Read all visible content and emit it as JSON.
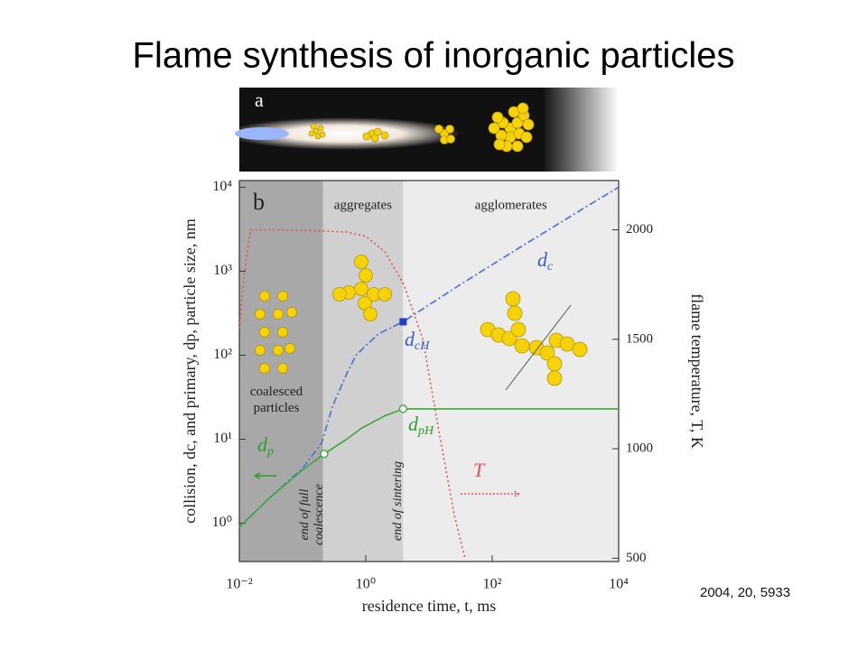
{
  "title": "Flame synthesis of inorganic particles",
  "citation": "2004, 20, 5933",
  "chart_data": {
    "type": "line",
    "panel_labels": [
      "a",
      "b"
    ],
    "xlabel": "residence time, t, ms",
    "ylabel": "collision, dc, and primary, dp, particle size, nm",
    "y2label": "flame temperature, T, K",
    "xscale": "log",
    "yscale": "log",
    "xlim": [
      0.01,
      10000
    ],
    "xticks": [
      {
        "value": 0.01,
        "label": "10⁻²"
      },
      {
        "value": 1,
        "label": "10⁰"
      },
      {
        "value": 100,
        "label": "10²"
      },
      {
        "value": 10000,
        "label": "10⁴"
      }
    ],
    "ylim": [
      0.35,
      12000
    ],
    "yticks": [
      {
        "value": 1,
        "label": "10⁰"
      },
      {
        "value": 10,
        "label": "10¹"
      },
      {
        "value": 100,
        "label": "10²"
      },
      {
        "value": 1000,
        "label": "10³"
      },
      {
        "value": 10000,
        "label": "10⁴"
      }
    ],
    "y2lim": [
      485,
      2225
    ],
    "y2ticks": [
      500,
      1000,
      1500,
      2000
    ],
    "regions": [
      {
        "label": "coalesced particles",
        "x": [
          0.01,
          0.21
        ],
        "color": "#a8a8a8"
      },
      {
        "label": "aggregates",
        "x": [
          0.21,
          3.9
        ],
        "color": "#d0d0d0"
      },
      {
        "label": "agglomerates",
        "x": [
          3.9,
          10000
        ],
        "color": "#ececec"
      }
    ],
    "series": [
      {
        "name": "T",
        "color": "#e8504f",
        "axis": "y2",
        "dash": "2 3",
        "x": [
          0.01,
          0.012,
          0.015,
          0.05,
          0.2,
          0.5,
          1,
          2,
          4,
          8,
          15,
          25,
          37
        ],
        "values": [
          1550,
          1800,
          2000,
          2000,
          1995,
          1990,
          1970,
          1900,
          1750,
          1500,
          1050,
          700,
          500
        ]
      },
      {
        "name": "dc",
        "color": "#4a6fd6",
        "dash": "8 3 2 3",
        "x": [
          0.01,
          0.03,
          0.1,
          0.2,
          0.3,
          0.5,
          0.7,
          1,
          1.6,
          3.9,
          30,
          300,
          3000,
          10000
        ],
        "values": [
          0.9,
          2,
          4.5,
          9,
          25,
          60,
          100,
          130,
          180,
          250,
          680,
          2000,
          5800,
          10000
        ]
      },
      {
        "name": "dp",
        "color": "#3aa83a",
        "dash": "none",
        "x": [
          0.01,
          0.03,
          0.1,
          0.22,
          0.5,
          0.85,
          2,
          3.9,
          10000
        ],
        "values": [
          0.9,
          2,
          4.3,
          6.7,
          10,
          13.5,
          19,
          23,
          23
        ]
      }
    ],
    "markers": [
      {
        "x": 0.22,
        "y": 6.7,
        "shape": "circle",
        "color": "#3aa83a"
      },
      {
        "x": 3.9,
        "y": 23,
        "shape": "circle",
        "color": "#3aa83a"
      },
      {
        "x": 3.9,
        "y": 250,
        "shape": "square",
        "color": "#1f3fc4"
      }
    ],
    "annotations": [
      {
        "text": "d",
        "sub": "c",
        "color": "#3a5cc8"
      },
      {
        "text": "d",
        "sub": "cH",
        "color": "#3a5cc8"
      },
      {
        "text": "d",
        "sub": "p",
        "color": "#2f9a2f"
      },
      {
        "text": "d",
        "sub": "pH",
        "color": "#2f9a2f"
      },
      {
        "text": "T",
        "color": "#e8504f"
      }
    ],
    "phase_notes": [
      "end of full",
      "coalescence",
      "end of sintering"
    ]
  }
}
